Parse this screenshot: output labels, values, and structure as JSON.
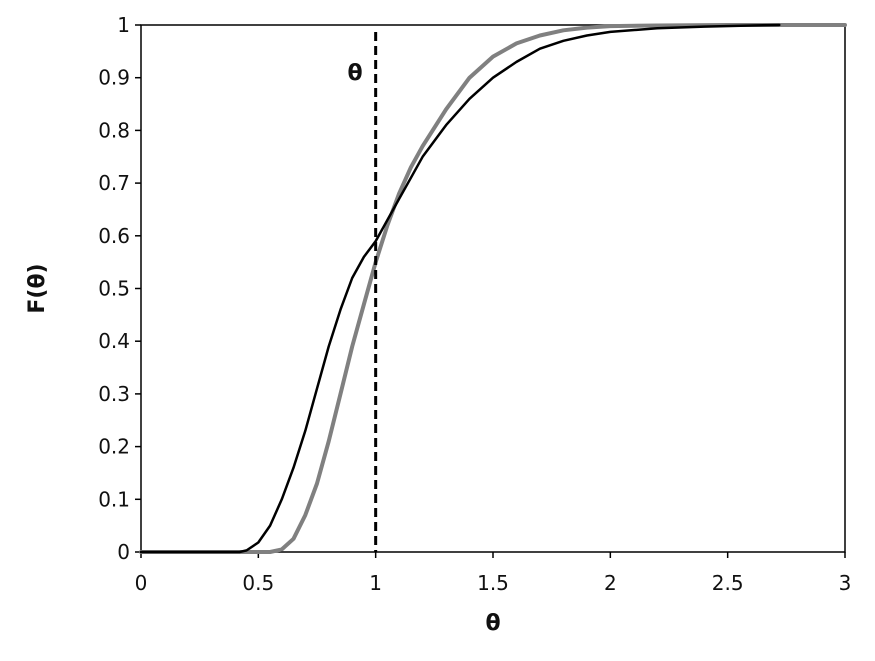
{
  "chart_data": {
    "type": "line",
    "xlabel": "θ",
    "ylabel": "F(θ)",
    "xlim": [
      0,
      3
    ],
    "ylim": [
      0,
      1
    ],
    "x_ticks": [
      "0",
      "0.5",
      "1",
      "1.5",
      "2",
      "2.5",
      "3"
    ],
    "y_ticks": [
      "0",
      "0.1",
      "0.2",
      "0.3",
      "0.4",
      "0.5",
      "0.6",
      "0.7",
      "0.8",
      "0.9",
      "1"
    ],
    "grid": false,
    "legend": "none",
    "series": [
      {
        "color": "#000000",
        "x": [
          0,
          0.42,
          0.45,
          0.5,
          0.55,
          0.6,
          0.65,
          0.7,
          0.75,
          0.8,
          0.85,
          0.9,
          0.95,
          1.0,
          1.05,
          1.1,
          1.15,
          1.2,
          1.3,
          1.4,
          1.5,
          1.6,
          1.7,
          1.8,
          1.9,
          2.0,
          2.2,
          2.4,
          2.6,
          2.72
        ],
        "y": [
          0,
          0,
          0.003,
          0.018,
          0.05,
          0.1,
          0.16,
          0.23,
          0.31,
          0.39,
          0.46,
          0.52,
          0.56,
          0.59,
          0.63,
          0.67,
          0.71,
          0.75,
          0.81,
          0.86,
          0.9,
          0.93,
          0.955,
          0.97,
          0.98,
          0.987,
          0.994,
          0.997,
          0.999,
          1.0
        ]
      },
      {
        "color": "#808080",
        "x": [
          0,
          0.55,
          0.6,
          0.65,
          0.7,
          0.75,
          0.8,
          0.85,
          0.9,
          0.95,
          1.0,
          1.05,
          1.1,
          1.15,
          1.2,
          1.3,
          1.4,
          1.5,
          1.6,
          1.7,
          1.8,
          1.9,
          2.0,
          2.2,
          2.5,
          3.0
        ],
        "y": [
          0,
          0,
          0.005,
          0.025,
          0.07,
          0.13,
          0.21,
          0.3,
          0.39,
          0.47,
          0.55,
          0.62,
          0.68,
          0.73,
          0.77,
          0.84,
          0.9,
          0.94,
          0.965,
          0.98,
          0.99,
          0.995,
          0.998,
          0.999,
          1.0,
          1.0
        ]
      }
    ],
    "vline": {
      "x": 1,
      "color": "#000000",
      "label": "θ"
    }
  }
}
